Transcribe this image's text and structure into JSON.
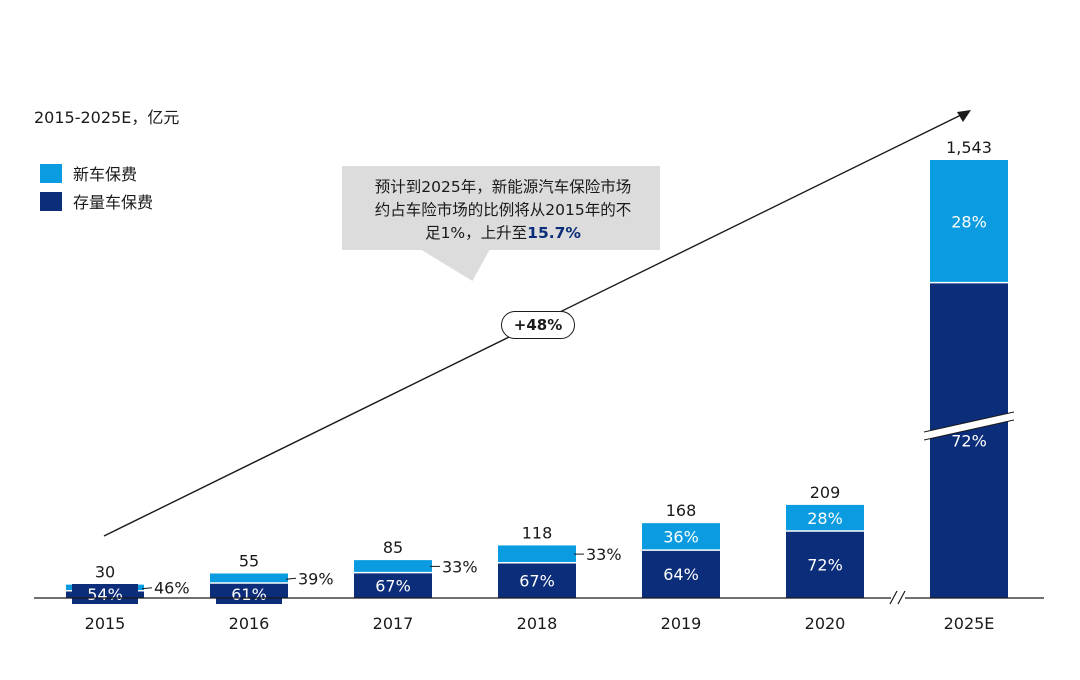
{
  "unit_note": "2015-2025E，亿元",
  "legend": [
    {
      "label": "新车保费",
      "color": "#0a9be0"
    },
    {
      "label": "存量车保费",
      "color": "#0b2d7a"
    }
  ],
  "callout": {
    "line1": "预计到2025年，新能源汽车保险市场",
    "line2": "约占车险市场的比例将从2015年的不",
    "line3_prefix": "足1%，上升至",
    "highlight": "15.7%"
  },
  "growth_badge": "+48%",
  "chart_data": {
    "type": "bar",
    "stacked": true,
    "categories": [
      "2015",
      "2016",
      "2017",
      "2018",
      "2019",
      "2020",
      "2025E"
    ],
    "totals": [
      30,
      55,
      85,
      118,
      168,
      209,
      1543
    ],
    "total_labels": [
      "30",
      "55",
      "85",
      "118",
      "168",
      "209",
      "1,543"
    ],
    "series": [
      {
        "name": "存量车保费",
        "color": "#0b2d7a",
        "share_labels": [
          "54%",
          "61%",
          "67%",
          "67%",
          "64%",
          "72%",
          "72%"
        ],
        "shares": [
          0.54,
          0.61,
          0.67,
          0.67,
          0.64,
          0.72,
          0.72
        ]
      },
      {
        "name": "新车保费",
        "color": "#0a9be0",
        "share_labels": [
          "46%",
          "39%",
          "33%",
          "33%",
          "36%",
          "28%",
          "28%"
        ],
        "shares": [
          0.46,
          0.39,
          0.33,
          0.33,
          0.36,
          0.28,
          0.28
        ]
      }
    ],
    "axis_break_before": "2025E"
  }
}
